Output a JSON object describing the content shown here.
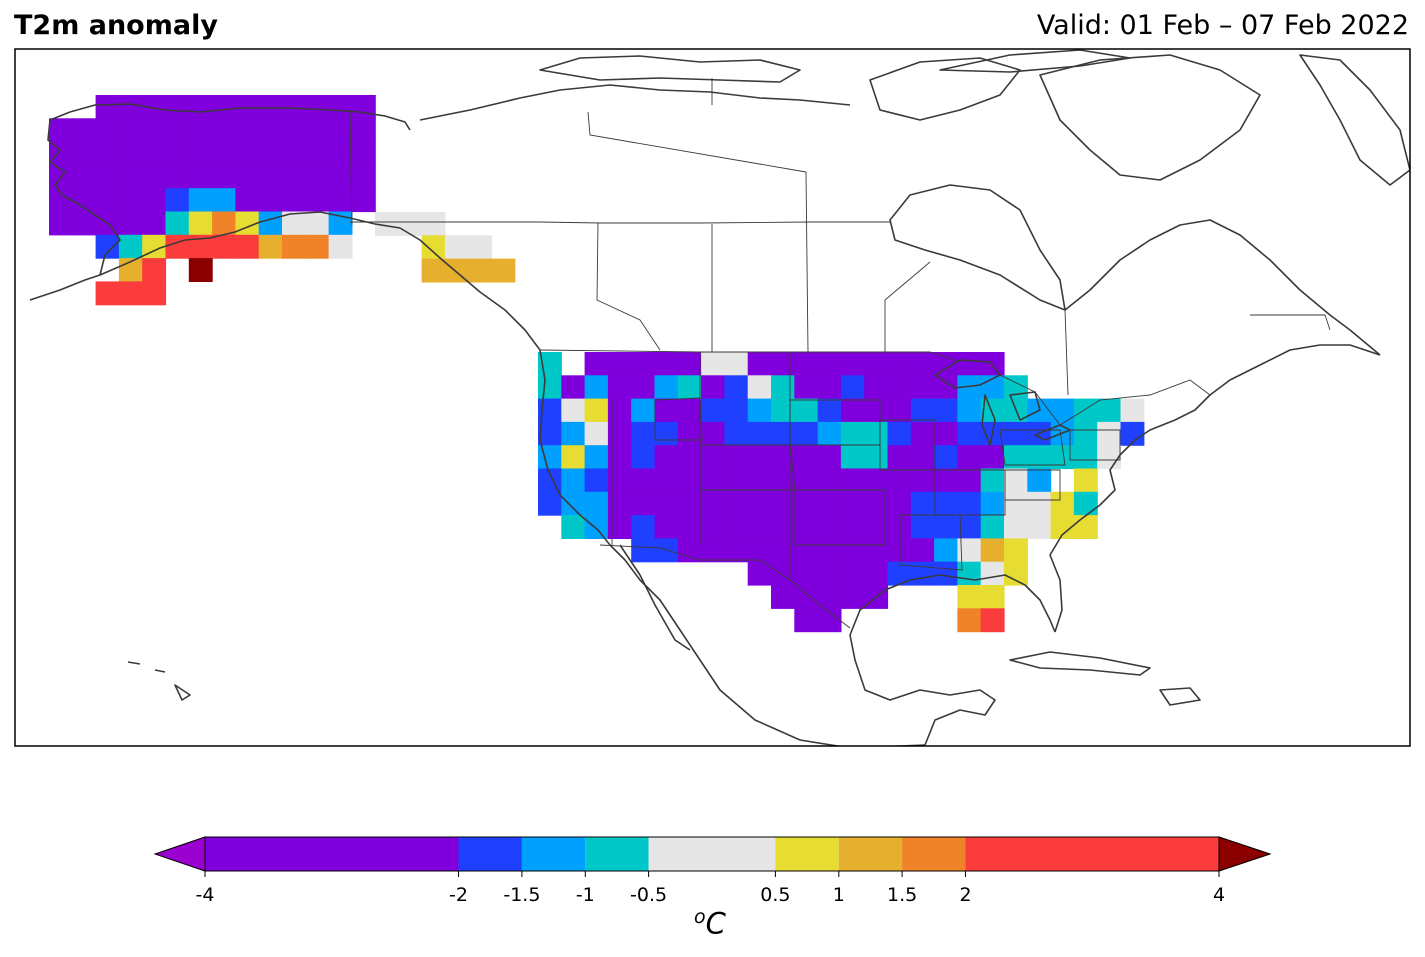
{
  "header": {
    "title": "T2m anomaly",
    "valid": "Valid: 01 Feb – 07 Feb 2022"
  },
  "colorbar": {
    "unit_prefix": "o",
    "unit_main": "C",
    "bounds": [
      -4,
      -2,
      -1.5,
      -1,
      -0.5,
      0.5,
      1,
      1.5,
      2,
      4
    ],
    "tick_labels": [
      "-4",
      "-2",
      "-1.5",
      "-1",
      "-0.5",
      "0.5",
      "1",
      "1.5",
      "2",
      "4"
    ],
    "colors": [
      "#8000dd",
      "#2040ff",
      "#00a0ff",
      "#00c8c8",
      "#e6e6e6",
      "#e6dc32",
      "#e6af2d",
      "#f08228",
      "#fa3c3c"
    ],
    "under_color": "#9a00d0",
    "over_color": "#8a0000"
  },
  "colors": {
    "coast": "#3a3a3a",
    "border": "#3a3a3a",
    "frame": "#000000"
  },
  "legend_key": "Grid cell letter codes: P=<-2, B=-2..-1.5, L=-1.5..-1, C=-1..-0.5, W=-0.5..0.5, Y=0.5..1, O=1..1.5, N=1.5..2, R=2..4, D=>4",
  "grid": {
    "alaska": [
      "..PPPPPPPPPPPP...",
      "PPPPPPPPPPPPPP...",
      "PPPPPPPPPPPPPP...",
      "PPPPPPPPPPPPPP...",
      "PPPPPBLLPPPPPP...",
      "PPPPPCYNYLWWL....",
      "..BCYRRRRONNW....",
      "...OR.D.........",
      "..RRR..........."
    ],
    "panhandle": [
      "WWW.",
      "..YWW",
      "..OOOO"
    ],
    "conus": [
      "C.PPPPPWWPPPPPPPPPPP......",
      "CPLPPLCPBWCPPBPPPPLLC.....",
      "BWYPLPPBBLCCBPPPBBLCCLLCCW",
      "BLWPBBPPBBBBLCCBPPBBBBLCWB",
      "LYLPBPPPPPPPPCCPPBPPCCCCW.",
      "BLBPPPPPPPPPPPPPPPPCWL.Y..",
      "BLLPPPPPPPPPPPPPBBBLWWYC..",
      ".CLPBPPPPPPPPPPPBBBCWWYY..",
      "....BBPPPPPPPPPPPLWOY.....",
      ".........PPPPPPBBBCWY.....",
      "..........PPPPP...YY......",
      "...........PP.....NR......"
    ]
  }
}
